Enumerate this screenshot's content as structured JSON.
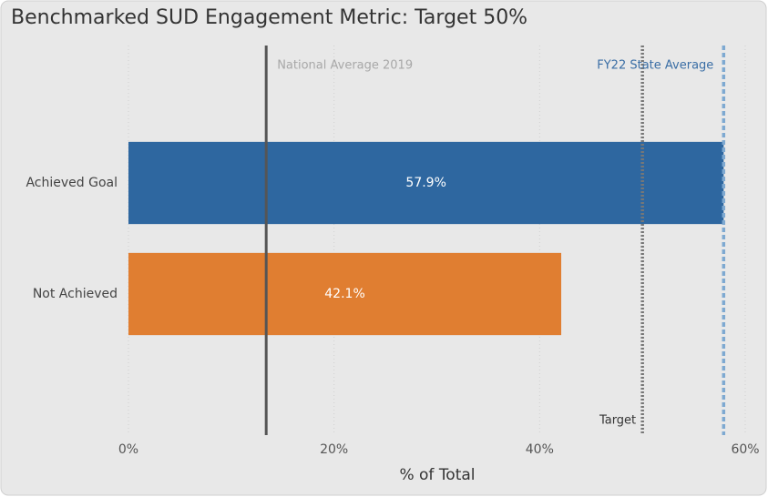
{
  "chart_data": {
    "type": "hbar",
    "title": "Benchmarked SUD Engagement Metric: Target 50%",
    "categories": [
      "Achieved Goal",
      "Not Achieved"
    ],
    "values": [
      57.9,
      42.1
    ],
    "value_labels": [
      "57.9%",
      "42.1%"
    ],
    "colors": [
      "#2e67a0",
      "#e07e31"
    ],
    "xlabel": "% of Total",
    "xlim": [
      0,
      60
    ],
    "xticks": [
      {
        "value": 0,
        "label": "0%"
      },
      {
        "value": 20,
        "label": "20%"
      },
      {
        "value": 40,
        "label": "40%"
      },
      {
        "value": 60,
        "label": "60%"
      }
    ],
    "grid": true,
    "reference_lines": [
      {
        "label": "National Average 2019",
        "value": 13.4,
        "color": "#555555",
        "style": "solid"
      },
      {
        "label": "Target",
        "value": 50,
        "color": "#777777",
        "style": "dotted"
      },
      {
        "label": "FY22 State Average",
        "value": 57.9,
        "color": "#7ea9d1",
        "style": "dashed"
      }
    ]
  }
}
